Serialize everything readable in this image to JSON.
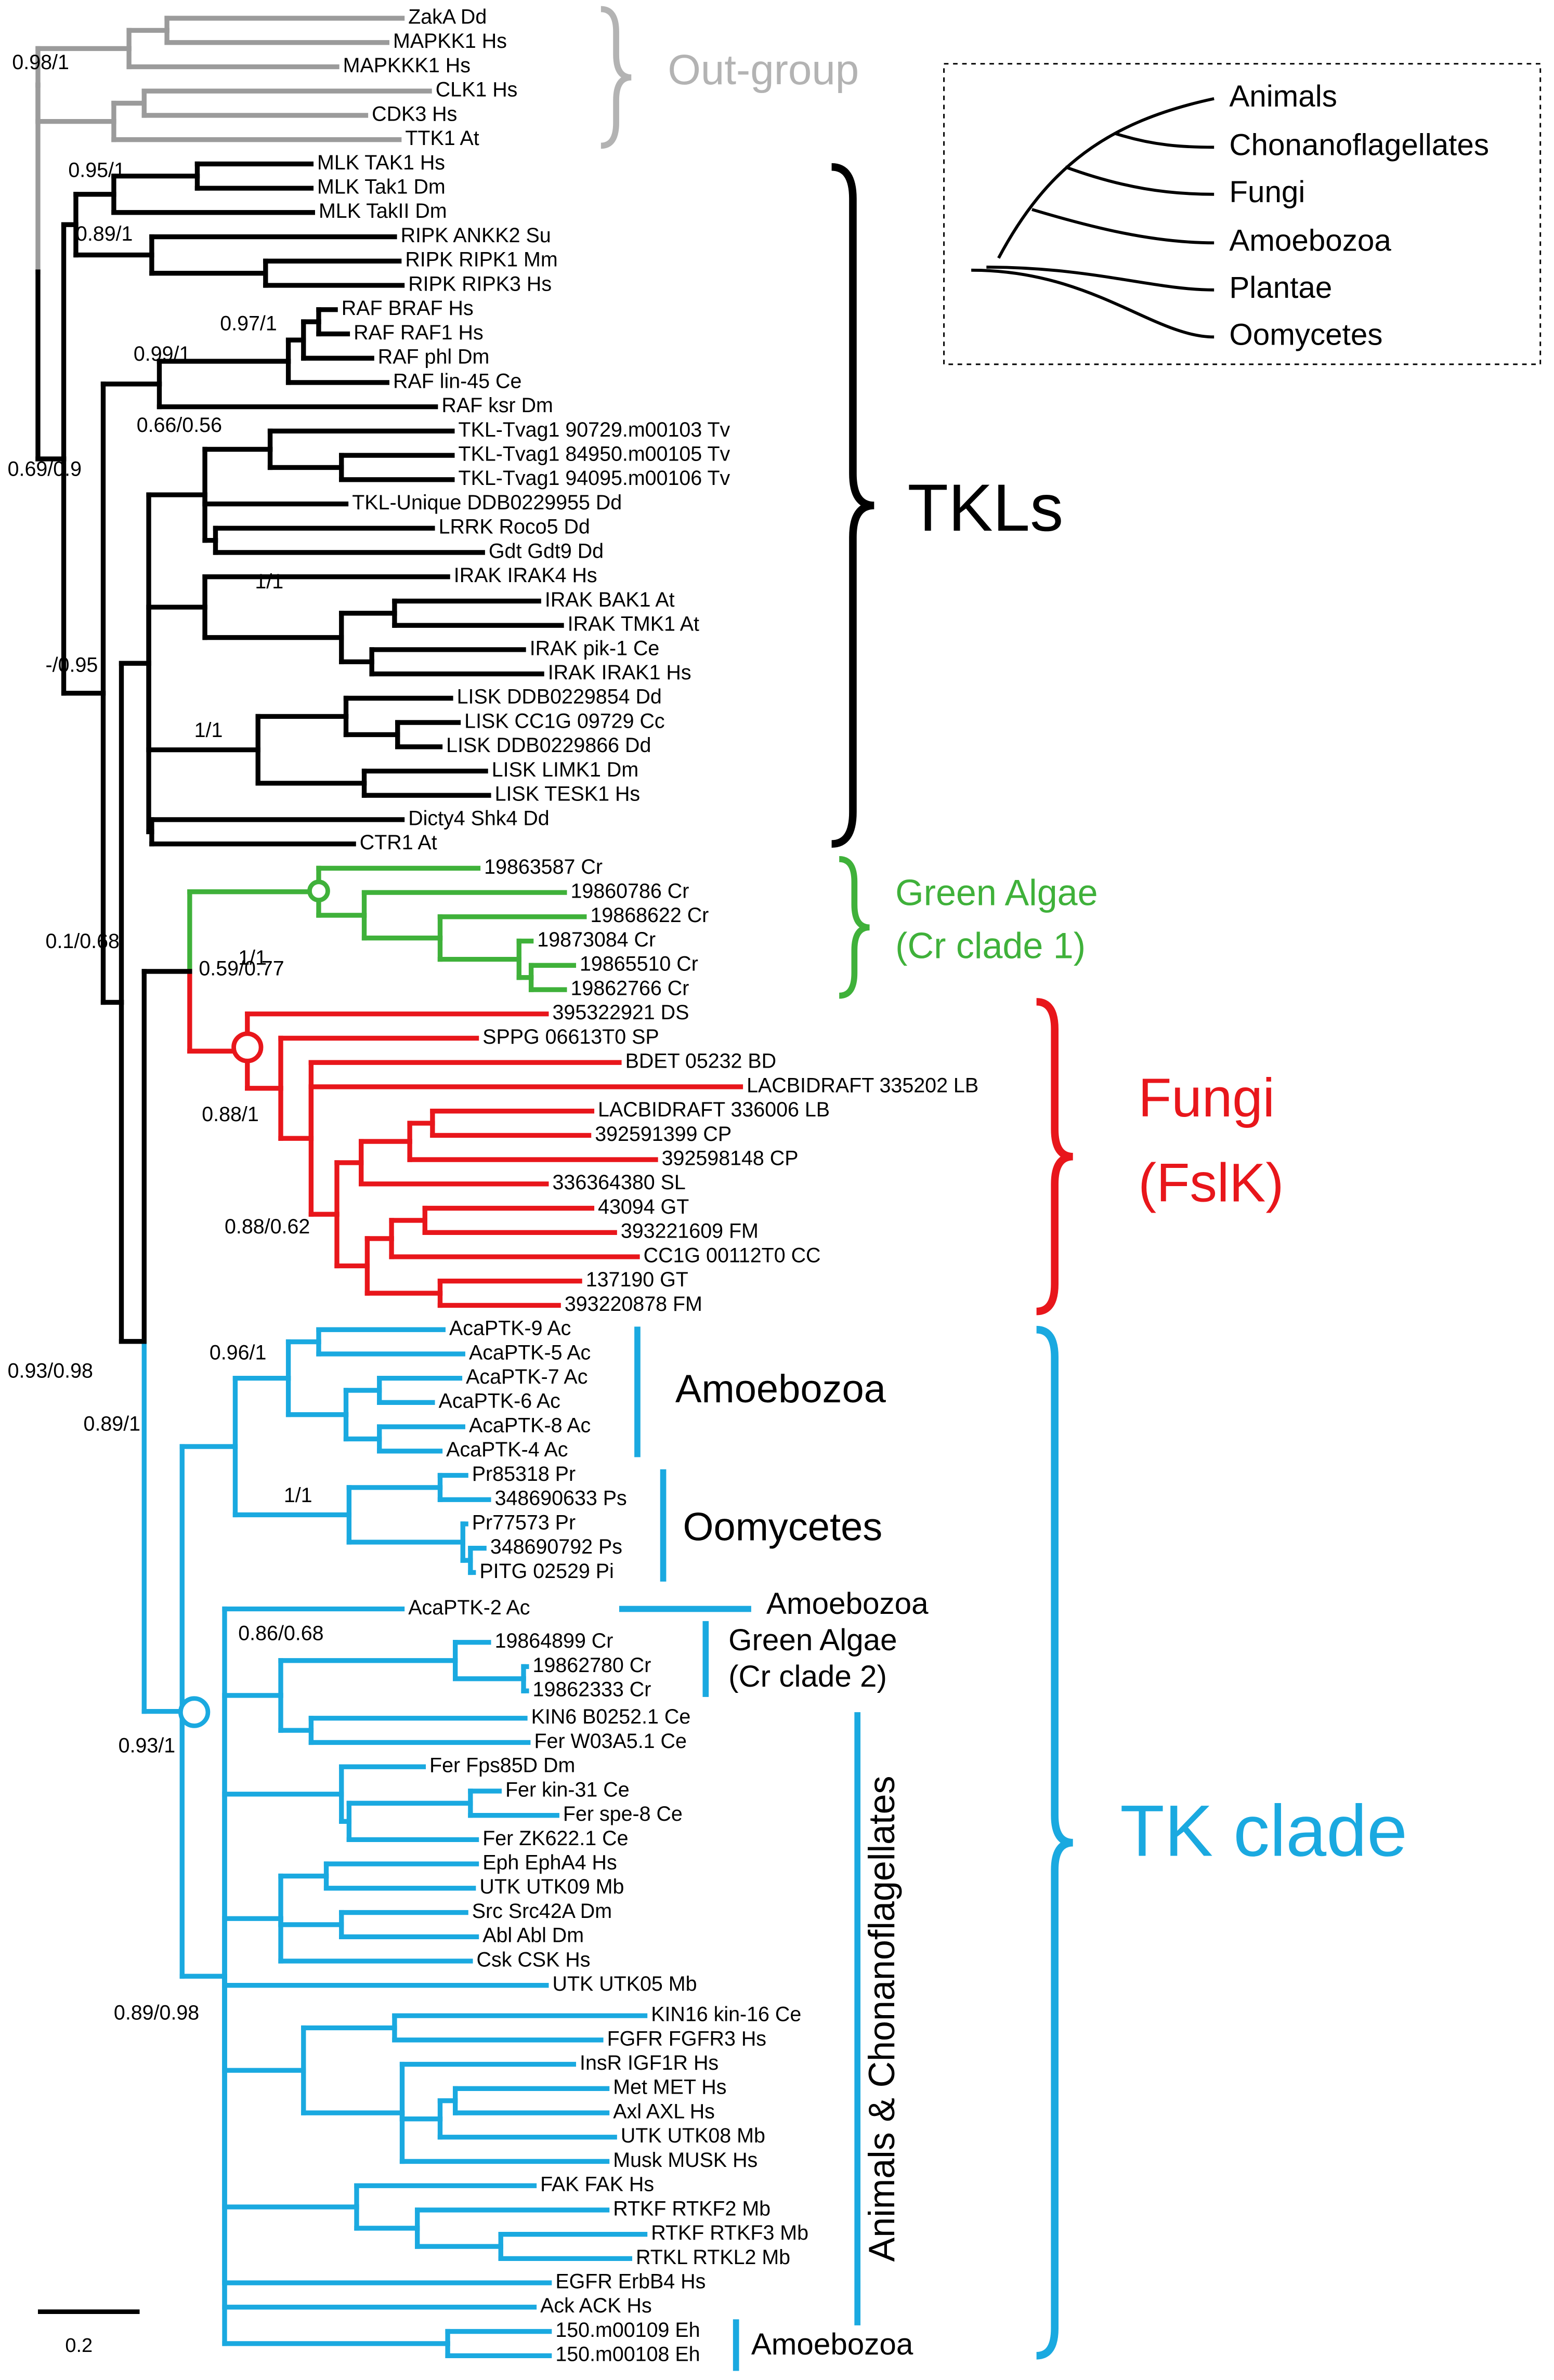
{
  "leaves": [
    "ZakA Dd",
    "MAPKK1 Hs",
    "MAPKKK1 Hs",
    "CLK1 Hs",
    "CDK3 Hs",
    "TTK1 At",
    "MLK TAK1 Hs",
    "MLK Tak1 Dm",
    "MLK TakII Dm",
    "RIPK ANKK2 Su",
    "RIPK RIPK1 Mm",
    "RIPK RIPK3 Hs",
    "RAF BRAF Hs",
    "RAF RAF1 Hs",
    "RAF phl Dm",
    "RAF lin-45 Ce",
    "RAF ksr Dm",
    "TKL-Tvag1 90729.m00103 Tv",
    "TKL-Tvag1 84950.m00105 Tv",
    "TKL-Tvag1 94095.m00106 Tv",
    "TKL-Unique DDB0229955 Dd",
    "LRRK Roco5 Dd",
    "Gdt Gdt9 Dd",
    "IRAK IRAK4 Hs",
    "IRAK BAK1 At",
    "IRAK TMK1 At",
    "IRAK pik-1 Ce",
    "IRAK IRAK1 Hs",
    "LISK DDB0229854 Dd",
    "LISK CC1G 09729 Cc",
    "LISK DDB0229866 Dd",
    "LISK LIMK1 Dm",
    "LISK TESK1 Hs",
    "Dicty4 Shk4 Dd",
    "CTR1 At",
    "19863587 Cr",
    "19860786 Cr",
    "19868622 Cr",
    "19873084 Cr",
    "19865510 Cr",
    "19862766 Cr",
    "395322921 DS",
    "SPPG 06613T0 SP",
    "BDET 05232 BD",
    "LACBIDRAFT 335202 LB",
    "LACBIDRAFT 336006 LB",
    "392591399 CP",
    "392598148 CP",
    "336364380 SL",
    "43094 GT",
    "393221609 FM",
    "CC1G 00112T0 CC",
    "137190 GT",
    "393220878 FM",
    "AcaPTK-9 Ac",
    "AcaPTK-5 Ac",
    "AcaPTK-7 Ac",
    "AcaPTK-6 Ac",
    "AcaPTK-8 Ac",
    "AcaPTK-4 Ac",
    "Pr85318 Pr",
    "348690633 Ps",
    "Pr77573 Pr",
    "348690792 Ps",
    "PITG 02529 Pi",
    "AcaPTK-2 Ac",
    "19864899 Cr",
    "19862780 Cr",
    "19862333 Cr",
    "KIN6 B0252.1 Ce",
    "Fer W03A5.1 Ce",
    "Fer Fps85D Dm",
    "Fer kin-31 Ce",
    "Fer spe-8 Ce",
    "Fer ZK622.1 Ce",
    "Eph EphA4 Hs",
    "UTK UTK09 Mb",
    "Src Src42A Dm",
    "Abl Abl Dm",
    "Csk CSK Hs",
    "UTK UTK05 Mb",
    "KIN16 kin-16 Ce",
    "FGFR FGFR3 Hs",
    "InsR IGF1R Hs",
    "Met MET Hs",
    "Axl AXL Hs",
    "UTK UTK08 Mb",
    "Musk MUSK Hs",
    "FAK FAK Hs",
    "RTKF RTKF2 Mb",
    "RTKF RTKF3 Mb",
    "RTKL RTKL2 Mb",
    "EGFR ErbB4 Hs",
    "Ack ACK Hs",
    "150.m00109 Eh",
    "150.m00108 Eh"
  ],
  "support_values": [
    "0.98/1",
    "0.95/1",
    "0.89/1",
    "0.97/1",
    "0.99/1",
    "0.66/0.56",
    "0.69/0.9",
    "1/1",
    "-/0.95",
    "1/1",
    "0.1/0.68",
    "1/1",
    "0.59/0.77",
    "0.88/1",
    "0.88/0.62",
    "0.93/0.98",
    "0.96/1",
    "0.89/1",
    "1/1",
    "0.86/0.68",
    "0.93/1",
    "0.89/0.98"
  ],
  "clades": [
    {
      "lines": [
        "Out-group"
      ]
    },
    {
      "lines": [
        "TKLs"
      ]
    },
    {
      "lines": [
        "Green Algae",
        "(Cr clade 1)"
      ]
    },
    {
      "lines": [
        "Fungi",
        "(FslK)"
      ]
    },
    {
      "lines": [
        "TK clade"
      ]
    },
    {
      "lines": [
        "Amoebozoa"
      ]
    },
    {
      "lines": [
        "Oomycetes"
      ]
    },
    {
      "lines": [
        "Amoebozoa"
      ]
    },
    {
      "lines": [
        "Green Algae",
        "(Cr clade 2)"
      ]
    },
    {
      "lines": [
        "Animals & Chonanoflagellates"
      ]
    },
    {
      "lines": [
        "Amoebozoa"
      ]
    }
  ],
  "inset_tree": {
    "taxa": [
      "Animals",
      "Chonanoflagellates",
      "Fungi",
      "Amoebozoa",
      "Plantae",
      "Oomycetes"
    ]
  },
  "scale_bar": {
    "label": "0.2"
  }
}
